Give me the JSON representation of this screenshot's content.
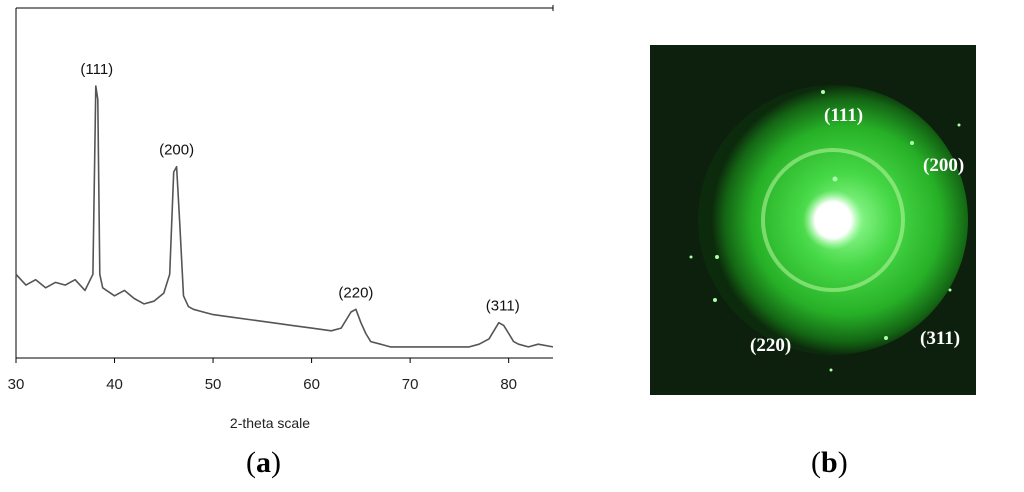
{
  "panel_labels": {
    "a": "a",
    "b": "b"
  },
  "chart_data": {
    "type": "line",
    "title": "",
    "xlabel": "2-theta scale",
    "ylabel": "",
    "xlim": [
      30,
      84.5
    ],
    "ylim": [
      0,
      100
    ],
    "xticks": [
      30,
      40,
      50,
      60,
      70,
      80
    ],
    "grid": false,
    "series": [
      {
        "x": [
          30,
          31,
          32,
          33,
          34,
          35,
          36,
          37,
          37.8,
          38.1,
          38.3,
          38.5,
          38.8,
          40,
          41,
          42,
          43,
          44,
          45,
          45.6,
          46.0,
          46.3,
          46.6,
          47.0,
          47.5,
          48,
          49,
          50,
          52,
          54,
          56,
          58,
          60,
          62,
          63,
          64,
          64.5,
          65,
          65.5,
          66,
          67,
          68,
          70,
          72,
          74,
          76,
          77,
          78,
          78.5,
          79,
          79.5,
          80,
          80.5,
          81,
          82,
          83,
          84.5
        ],
        "values": [
          30,
          26,
          28,
          25,
          27,
          26,
          28,
          24,
          30,
          100,
          95,
          30,
          25,
          22,
          24,
          21,
          19,
          20,
          23,
          30,
          68,
          70,
          50,
          22,
          18,
          17,
          16,
          15,
          14,
          13,
          12,
          11,
          10,
          9,
          10,
          16,
          17,
          12,
          8,
          5,
          4,
          3,
          3,
          3,
          3,
          3,
          4,
          6,
          9,
          12,
          11,
          8,
          5,
          4,
          3,
          4,
          3
        ]
      }
    ],
    "annotations": [
      {
        "text": "(111)",
        "x": 38.2
      },
      {
        "text": "(200)",
        "x": 46.3
      },
      {
        "text": "(220)",
        "x": 64.5
      },
      {
        "text": "(311)",
        "x": 79.4
      }
    ]
  },
  "saed": {
    "ring_labels": [
      "(111)",
      "(200)",
      "(220)",
      "(311)"
    ]
  }
}
